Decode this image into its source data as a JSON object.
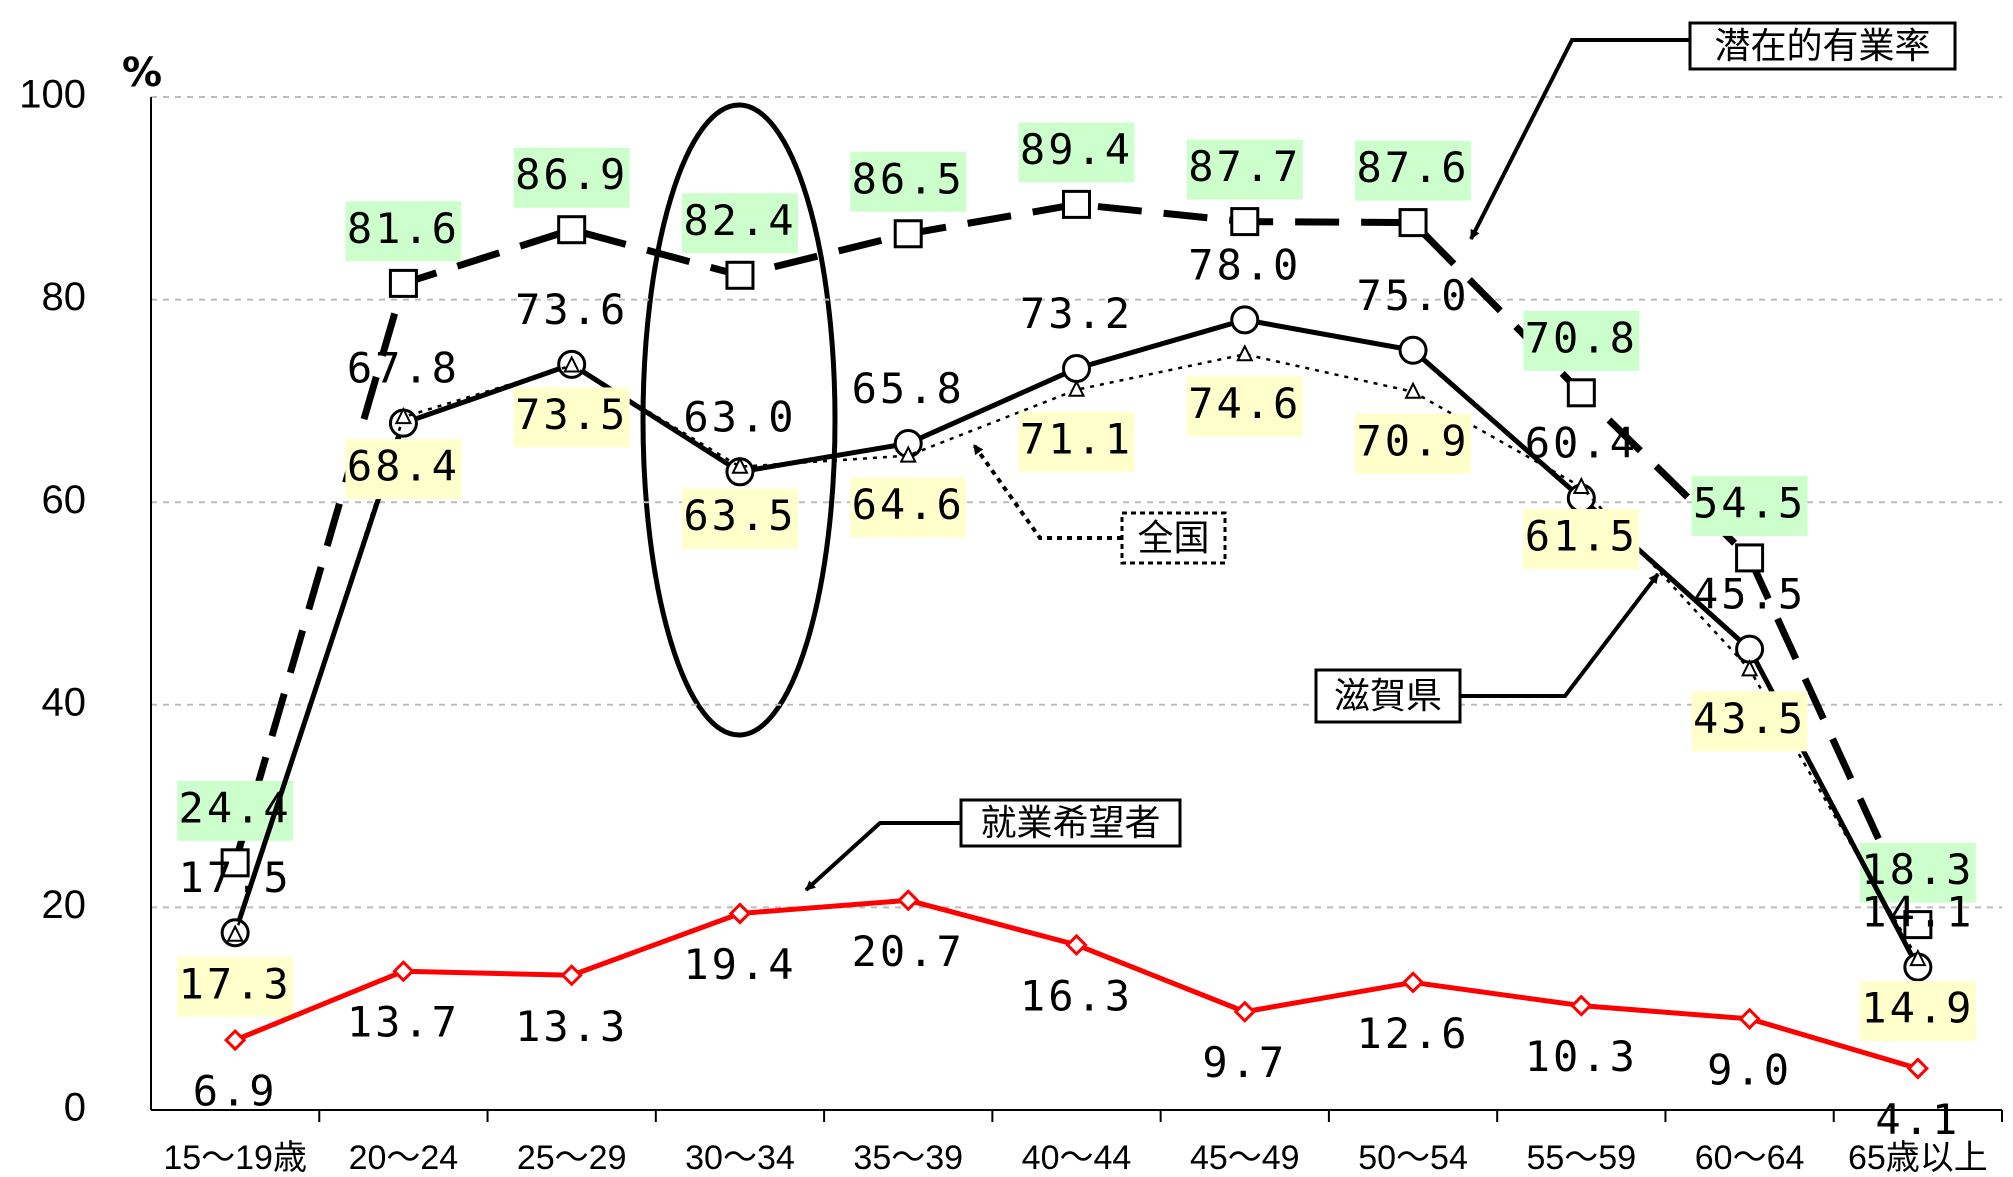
{
  "chart_data": {
    "type": "line",
    "y_label": "%",
    "categories": [
      "15～19歳",
      "20～24",
      "25～29",
      "30～34",
      "35～39",
      "40～44",
      "45～49",
      "50～54",
      "55～59",
      "60～64",
      "65歳以上"
    ],
    "ylim": [
      0,
      100
    ],
    "yticks": [
      0,
      20,
      40,
      60,
      80,
      100
    ],
    "grid": true,
    "series": [
      {
        "name": "潜在的有業率",
        "color": "#000000",
        "marker": "square",
        "line": "dashed",
        "label_background": "#ccffcc",
        "values": [
          24.4,
          81.6,
          86.9,
          82.4,
          86.5,
          89.4,
          87.7,
          87.6,
          70.8,
          54.5,
          18.3
        ],
        "value_labels": [
          "24.4",
          "81.6",
          "86.9",
          "82.4",
          "86.5",
          "89.4",
          "87.7",
          "87.6",
          "70.8",
          "54.5",
          "18.3"
        ]
      },
      {
        "name": "滋賀県",
        "color": "#000000",
        "marker": "circle",
        "line": "solid",
        "values": [
          17.5,
          67.8,
          73.6,
          63.0,
          65.8,
          73.2,
          78.0,
          75.0,
          60.4,
          45.5,
          14.1
        ],
        "value_labels": [
          "17.5",
          "67.8",
          "73.6",
          "63.0",
          "65.8",
          "73.2",
          "78.0",
          "75.0",
          "60.4",
          "45.5",
          "14.1"
        ]
      },
      {
        "name": "全国",
        "color": "#000000",
        "marker": "triangle",
        "line": "dotted",
        "label_background": "#ffffcc",
        "values": [
          17.3,
          68.4,
          73.5,
          63.5,
          64.6,
          71.1,
          74.6,
          70.9,
          61.5,
          43.5,
          14.9
        ],
        "value_labels": [
          "17.3",
          "68.4",
          "73.5",
          "63.5",
          "64.6",
          "71.1",
          "74.6",
          "70.9",
          "61.5",
          "43.5",
          "14.9"
        ]
      },
      {
        "name": "就業希望者",
        "color": "#ff0000",
        "marker": "diamond",
        "line": "solid",
        "values": [
          6.9,
          13.7,
          13.3,
          19.4,
          20.7,
          16.3,
          9.7,
          12.6,
          10.3,
          9.0,
          4.1
        ],
        "value_labels": [
          "6.9",
          "13.7",
          "13.3",
          "19.4",
          "20.7",
          "16.3",
          "9.7",
          "12.6",
          "10.3",
          "9.0",
          "4.1"
        ]
      }
    ]
  }
}
